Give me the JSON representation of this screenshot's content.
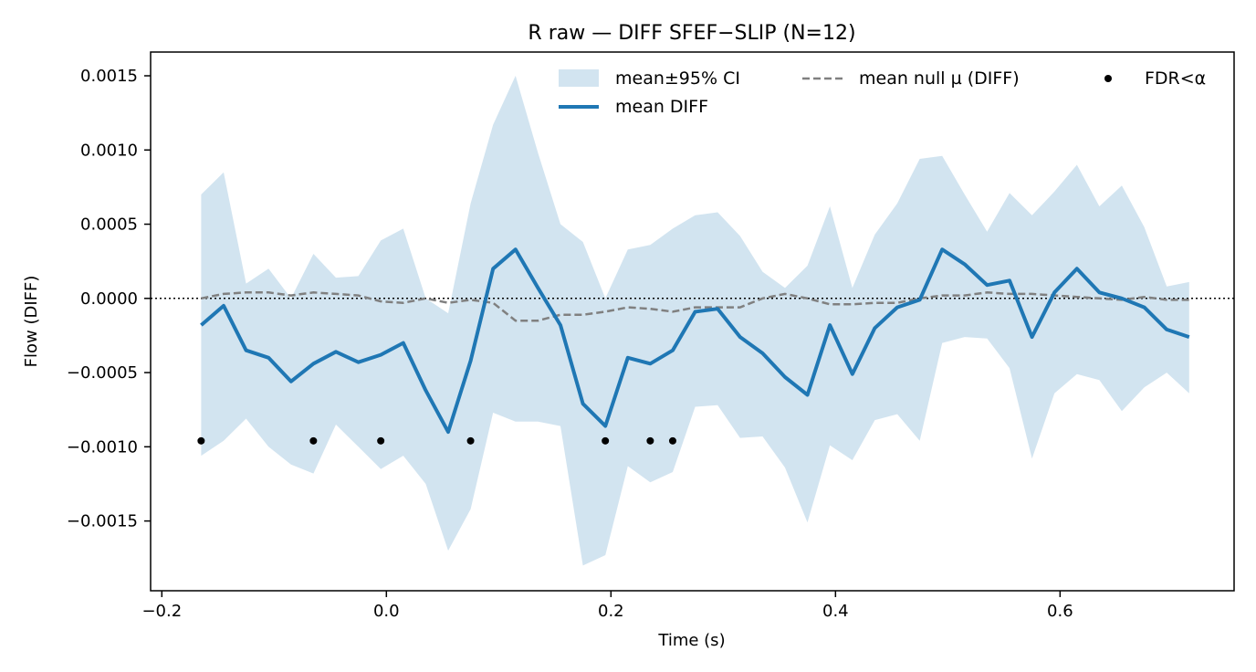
{
  "chart_data": {
    "type": "line",
    "title": "R raw — DIFF SFEF−SLIP (N=12)",
    "xlabel": "Time (s)",
    "ylabel": "Flow (DIFF)",
    "xlim": [
      -0.21,
      0.755
    ],
    "ylim": [
      -0.00197,
      0.00166
    ],
    "xticks": [
      -0.2,
      0.0,
      0.2,
      0.4,
      0.6
    ],
    "xtick_labels": [
      "−0.2",
      "0.0",
      "0.2",
      "0.4",
      "0.6"
    ],
    "yticks": [
      0.0015,
      0.001,
      0.0005,
      0.0,
      -0.0005,
      -0.001,
      -0.0015
    ],
    "ytick_labels": [
      "0.0015",
      "0.0010",
      "0.0005",
      "0.0000",
      "−0.0005",
      "−0.0010",
      "−0.0015"
    ],
    "grid": false,
    "legend_position": "top-right",
    "legend": {
      "ci_label": "mean±95% CI",
      "mean_label": "mean DIFF",
      "null_label": "mean null µ (DIFF)",
      "sig_label": "FDR<α"
    },
    "zero_line": 0,
    "x": [
      -0.165,
      -0.145,
      -0.125,
      -0.105,
      -0.085,
      -0.065,
      -0.045,
      -0.025,
      -0.005,
      0.015,
      0.035,
      0.055,
      0.075,
      0.095,
      0.115,
      0.135,
      0.155,
      0.175,
      0.195,
      0.215,
      0.235,
      0.255,
      0.275,
      0.295,
      0.315,
      0.335,
      0.355,
      0.375,
      0.395,
      0.415,
      0.435,
      0.455,
      0.475,
      0.495,
      0.515,
      0.535,
      0.555,
      0.575,
      0.595,
      0.615,
      0.635,
      0.655,
      0.675,
      0.695,
      0.715
    ],
    "series": [
      {
        "name": "mean DIFF",
        "color": "#1f77b4",
        "values": [
          -0.00018,
          -5e-05,
          -0.00035,
          -0.0004,
          -0.00056,
          -0.00044,
          -0.00036,
          -0.00043,
          -0.00038,
          -0.0003,
          -0.00062,
          -0.0009,
          -0.00042,
          0.0002,
          0.00033,
          7e-05,
          -0.00018,
          -0.00071,
          -0.00086,
          -0.0004,
          -0.00044,
          -0.00035,
          -9e-05,
          -7e-05,
          -0.00026,
          -0.00037,
          -0.00053,
          -0.00065,
          -0.00018,
          -0.00051,
          -0.0002,
          -6e-05,
          -1e-05,
          0.00033,
          0.00023,
          9e-05,
          0.00012,
          -0.00026,
          4e-05,
          0.0002,
          4e-05,
          0.0,
          -6e-05,
          -0.00021,
          -0.00026
        ]
      },
      {
        "name": "mean null µ (DIFF)",
        "color": "#808080",
        "values": [
          0.0,
          3e-05,
          4e-05,
          4e-05,
          2e-05,
          4e-05,
          3e-05,
          2e-05,
          -2e-05,
          -3e-05,
          0.0,
          -3e-05,
          -1e-05,
          -3e-05,
          -0.00015,
          -0.00015,
          -0.00011,
          -0.00011,
          -9e-05,
          -6e-05,
          -7e-05,
          -9e-05,
          -6e-05,
          -6e-05,
          -6e-05,
          0.0,
          3e-05,
          0.0,
          -4e-05,
          -4e-05,
          -3e-05,
          -3e-05,
          0.0,
          2e-05,
          2e-05,
          4e-05,
          3e-05,
          3e-05,
          2e-05,
          1e-05,
          0.0,
          -1e-05,
          1e-05,
          -1e-05,
          -1e-05
        ]
      }
    ],
    "ci": {
      "name": "mean±95% CI",
      "color": "#1f77b4",
      "upper": [
        0.0007,
        0.00085,
        0.0001,
        0.0002,
        0.0,
        0.0003,
        0.00014,
        0.00015,
        0.00039,
        0.00047,
        0.0,
        -0.0001,
        0.00064,
        0.00117,
        0.0015,
        0.00098,
        0.0005,
        0.00038,
        0.0,
        0.00033,
        0.00036,
        0.00047,
        0.00056,
        0.00058,
        0.00042,
        0.00018,
        7e-05,
        0.00022,
        0.00062,
        7e-05,
        0.00043,
        0.00064,
        0.00094,
        0.00096,
        0.0007,
        0.00045,
        0.00071,
        0.00056,
        0.00072,
        0.0009,
        0.00062,
        0.00076,
        0.00048,
        8e-05,
        0.00011
      ],
      "lower": [
        -0.00106,
        -0.00096,
        -0.00081,
        -0.001,
        -0.00112,
        -0.00118,
        -0.00085,
        -0.001,
        -0.00115,
        -0.00106,
        -0.00125,
        -0.0017,
        -0.00142,
        -0.00077,
        -0.00083,
        -0.00083,
        -0.00086,
        -0.0018,
        -0.00173,
        -0.00113,
        -0.00124,
        -0.00117,
        -0.00073,
        -0.00072,
        -0.00094,
        -0.00093,
        -0.00114,
        -0.00151,
        -0.00099,
        -0.00109,
        -0.00082,
        -0.00078,
        -0.00096,
        -0.0003,
        -0.00026,
        -0.00027,
        -0.00047,
        -0.00108,
        -0.00064,
        -0.00051,
        -0.00055,
        -0.00076,
        -0.0006,
        -0.0005,
        -0.00064
      ]
    },
    "significant": {
      "name": "FDR<α",
      "color": "#000000",
      "x": [
        -0.165,
        -0.065,
        -0.005,
        0.075,
        0.195,
        0.235,
        0.255
      ],
      "y": -0.00096
    }
  }
}
